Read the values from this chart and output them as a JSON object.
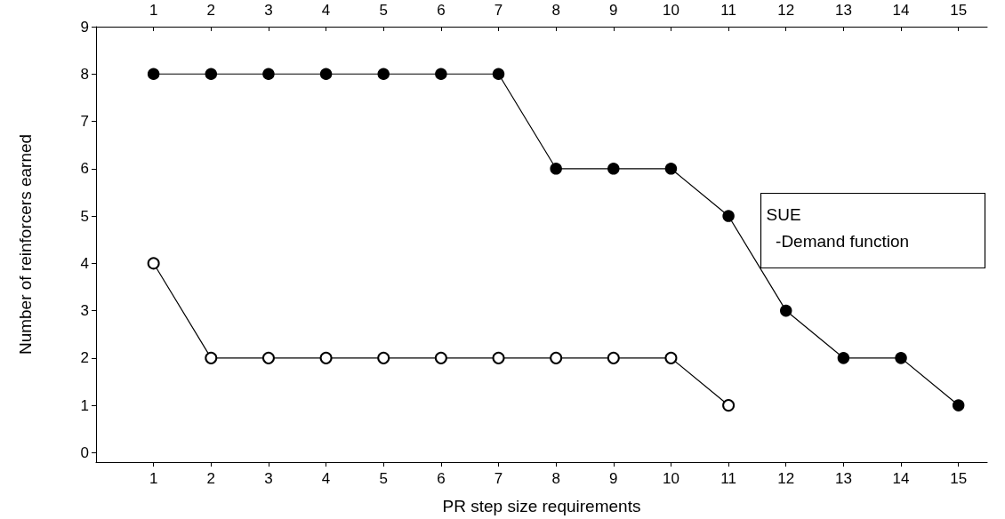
{
  "chart_data": {
    "type": "line",
    "xlabel": "PR step size requirements",
    "ylabel": "Number of reinforcers earned",
    "x": [
      1,
      2,
      3,
      4,
      5,
      6,
      7,
      8,
      9,
      10,
      11,
      12,
      13,
      14,
      15
    ],
    "series": [
      {
        "color": "#000000",
        "values": [
          8,
          8,
          8,
          8,
          8,
          8,
          8,
          6,
          6,
          6,
          5,
          3,
          2,
          2,
          1
        ]
      },
      {
        "color": "#000000",
        "values": [
          4,
          2,
          2,
          2,
          2,
          2,
          2,
          2,
          2,
          2,
          1,
          null,
          null,
          null,
          null
        ]
      }
    ],
    "xlim": [
      0,
      15.5
    ],
    "xticks": [
      1,
      2,
      3,
      4,
      5,
      6,
      7,
      8,
      9,
      10,
      11,
      12,
      13,
      14,
      15
    ],
    "x2lim": [
      0,
      15.5
    ],
    "x2ticks": [
      1,
      2,
      3,
      4,
      5,
      6,
      7,
      8,
      9,
      10,
      11,
      12,
      13,
      14,
      15
    ],
    "ylim": [
      -0.2,
      9
    ],
    "yticks": [
      0,
      1,
      2,
      3,
      4,
      5,
      6,
      7,
      8,
      9
    ],
    "marker": "circle",
    "grid": false,
    "annotations": [
      "SUE",
      "  -Demand function"
    ]
  }
}
